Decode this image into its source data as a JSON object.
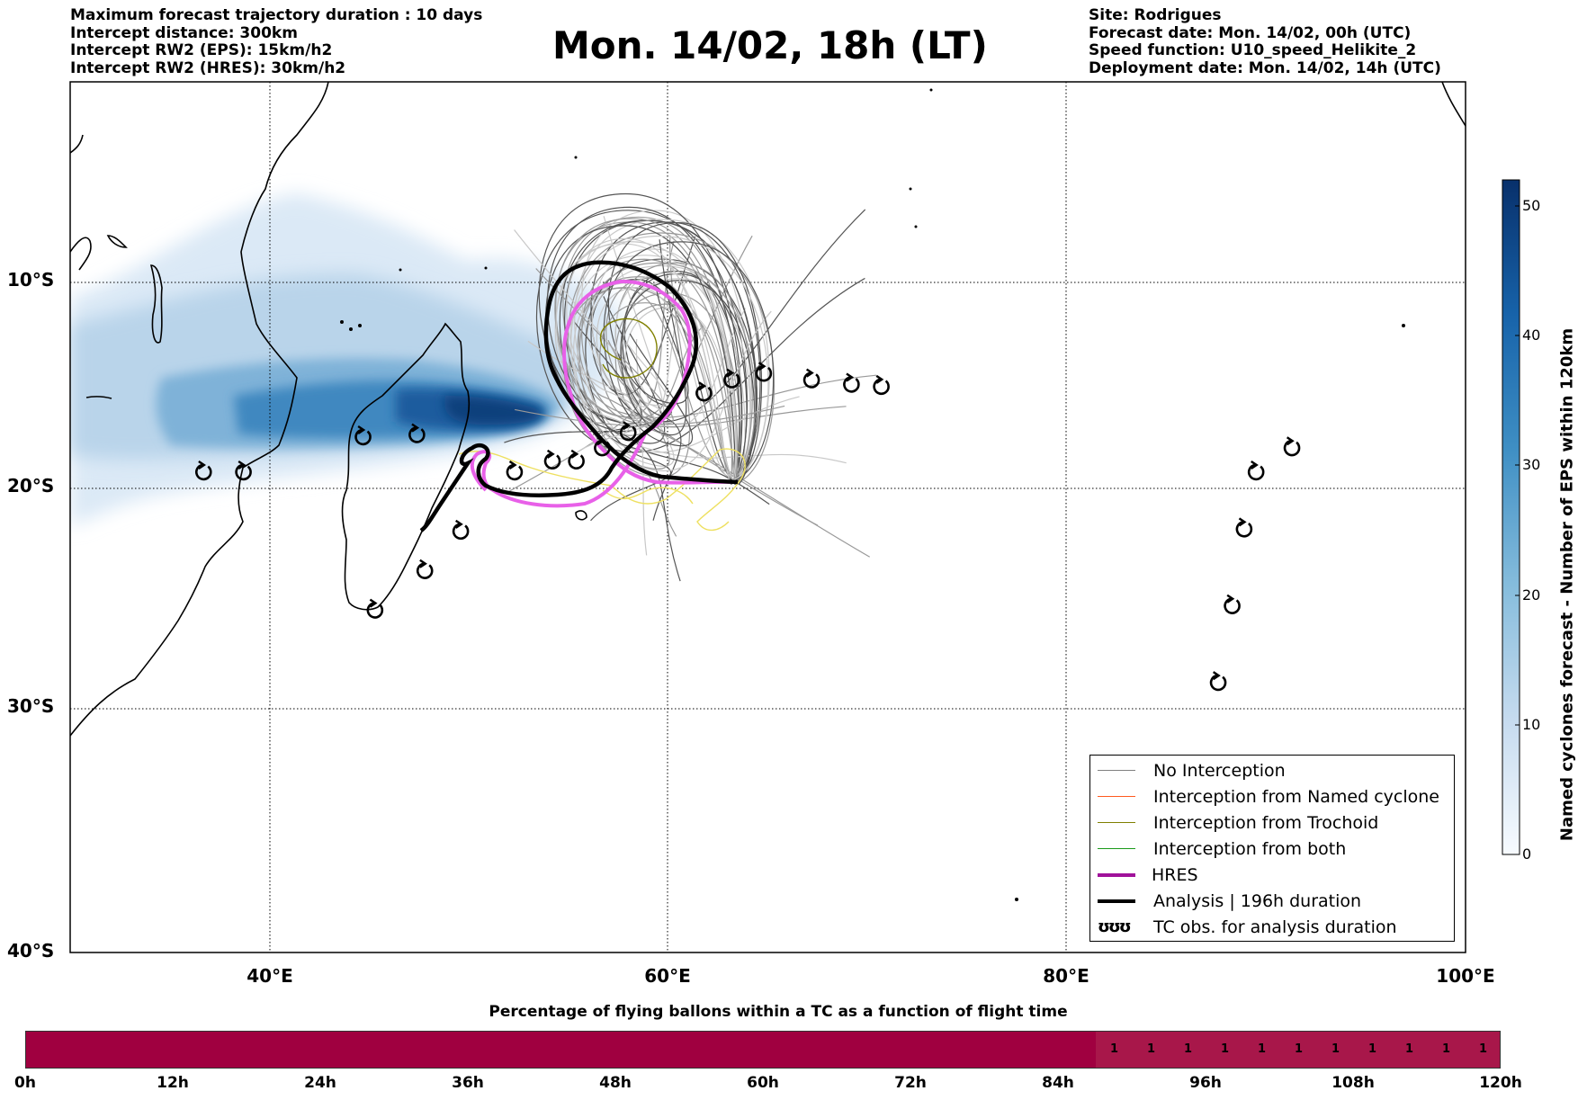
{
  "info_left": [
    "Maximum forecast trajectory duration : 10 days",
    "Intercept distance: 300km",
    "Intercept RW2 (EPS):  15km/h2",
    "Intercept RW2 (HRES): 30km/h2"
  ],
  "title": "Mon. 14/02, 18h (LT)",
  "info_right": [
    "Site: Rodrigues",
    "Forecast date: Mon. 14/02, 00h (UTC)",
    "Speed function: U10_speed_Helikite_2",
    "Deployment date: Mon. 14/02, 14h (UTC)"
  ],
  "map": {
    "lon_range": [
      30,
      100
    ],
    "lat_range": [
      -40,
      -0.3
    ],
    "lat_labels": [
      "10°S",
      "20°S",
      "30°S",
      "40°S"
    ],
    "lon_labels": [
      "40°E",
      "60°E",
      "80°E",
      "100°E"
    ],
    "grid": true
  },
  "colorbar": {
    "title": "Named cyclones forecast - Number of EPS within 120km",
    "ticks": [
      "0",
      "10",
      "20",
      "30",
      "40",
      "50"
    ],
    "range": [
      0,
      52
    ],
    "colormap": "Blues"
  },
  "legend": {
    "items": [
      {
        "label": "No Interception",
        "color": "#808080",
        "style": "thin"
      },
      {
        "label": "Interception from Named cyclone",
        "color": "#ff5a1f",
        "style": "thin"
      },
      {
        "label": "Interception from Trochoid",
        "color": "#808000",
        "style": "thin"
      },
      {
        "label": "Interception from both",
        "color": "#1a9a1a",
        "style": "thin"
      },
      {
        "label": "HRES",
        "color": "#a0129a",
        "style": "thick"
      },
      {
        "label": "Analysis | 196h duration",
        "color": "#000000",
        "style": "thick"
      },
      {
        "label": "TC obs. for analysis duration",
        "color": "#000000",
        "style": "symbol",
        "symbol": "ʊʊʊ"
      }
    ]
  },
  "tc_observations": [
    [
      36.7,
      -18.1
    ],
    [
      38.7,
      -18.1
    ],
    [
      44.7,
      -16.5
    ],
    [
      47.4,
      -16.4
    ],
    [
      45.3,
      -24.4
    ],
    [
      47.8,
      -22.6
    ],
    [
      49.6,
      -20.8
    ],
    [
      52.3,
      -18.1
    ],
    [
      54.2,
      -17.6
    ],
    [
      55.4,
      -17.6
    ],
    [
      56.7,
      -17.0
    ],
    [
      58.0,
      -16.3
    ],
    [
      61.8,
      -14.5
    ],
    [
      63.2,
      -13.9
    ],
    [
      64.8,
      -13.6
    ],
    [
      67.2,
      -13.9
    ],
    [
      69.2,
      -14.1
    ],
    [
      70.7,
      -14.2
    ],
    [
      87.6,
      -27.7
    ],
    [
      88.3,
      -24.2
    ],
    [
      88.9,
      -20.7
    ],
    [
      89.5,
      -18.1
    ],
    [
      91.3,
      -17.0
    ]
  ],
  "flight_time_bar": {
    "title": "Percentage of flying ballons within a TC as a function of flight time",
    "ticks": [
      "0h",
      "12h",
      "24h",
      "36h",
      "48h",
      "60h",
      "72h",
      "84h",
      "96h",
      "108h",
      "120h"
    ],
    "values_start_hour": 87,
    "values": [
      "1",
      "1",
      "1",
      "1",
      "1",
      "1",
      "1",
      "1",
      "1",
      "1",
      "1"
    ],
    "fill_colors": [
      "#a00040",
      "#a8174a"
    ]
  }
}
